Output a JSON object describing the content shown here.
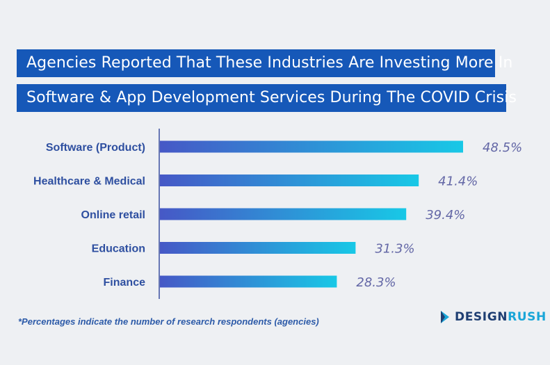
{
  "header": {
    "title_line_1": "Agencies Reported That These Industries Are Investing More In",
    "title_line_2": "Software & App Development Services During The COVID Crisis"
  },
  "chart_data": {
    "type": "bar",
    "orientation": "horizontal",
    "title": "Agencies Reported That These Industries Are Investing More In Software & App Development Services During The COVID Crisis",
    "categories": [
      "Software (Product)",
      "Healthcare & Medical",
      "Online retail",
      "Education",
      "Finance"
    ],
    "values": [
      48.5,
      41.4,
      39.4,
      31.3,
      28.3
    ],
    "value_labels": [
      "48.5%",
      "41.4%",
      "39.4%",
      "31.3%",
      "28.3%"
    ],
    "unit": "%",
    "xlim": [
      0,
      48.5
    ],
    "grid": false,
    "bar_gradient": [
      "#4658c6",
      "#18c8e6"
    ]
  },
  "footnote": "*Percentages indicate the number of research respondents (agencies)",
  "logo": {
    "part1": "DESIGN",
    "part2": "RUSH"
  }
}
